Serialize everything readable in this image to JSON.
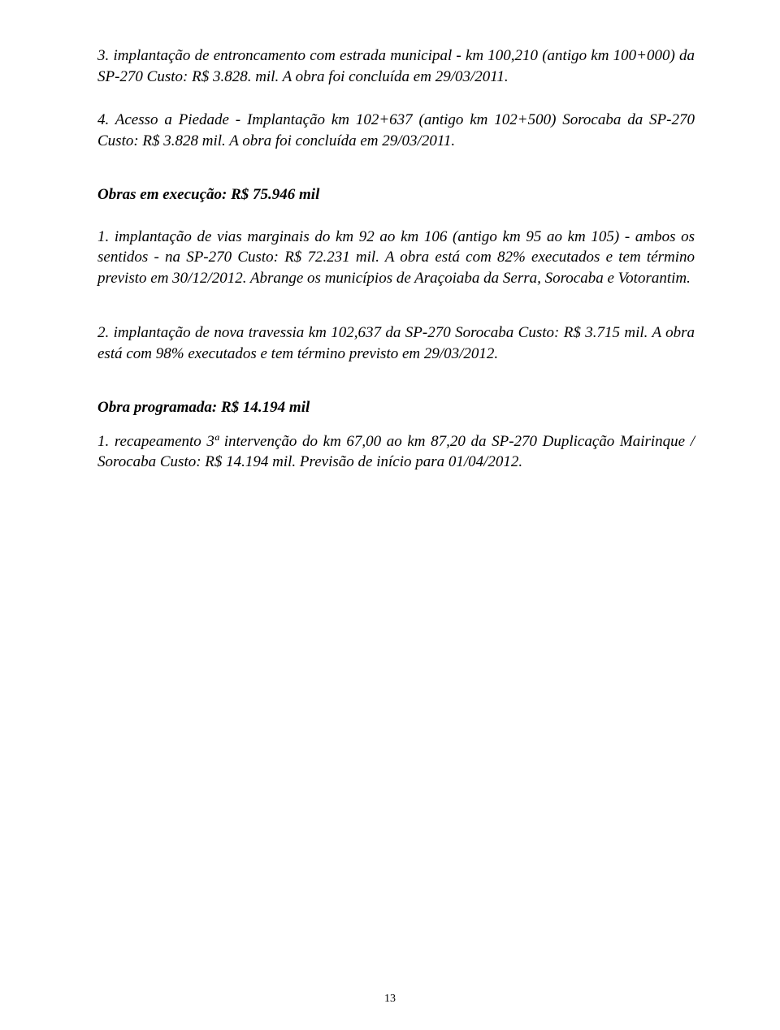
{
  "paragraphs": {
    "p1": "3. implantação de entroncamento com estrada municipal - km 100,210 (antigo km 100+000) da SP-270 Custo: R$ 3.828. mil. A obra foi concluída em 29/03/2011.",
    "p2": "4. Acesso a Piedade - Implantação km 102+637 (antigo km 102+500) Sorocaba da SP-270 Custo: R$ 3.828 mil. A obra foi concluída em 29/03/2011.",
    "p3": "1. implantação de vias marginais do km 92 ao km 106 (antigo km 95 ao km 105) - ambos os sentidos - na SP-270 Custo: R$ 72.231 mil. A obra está com 82% executados e tem término previsto em 30/12/2012. Abrange os municípios de Araçoiaba da Serra, Sorocaba e Votorantim.",
    "p4": "2. implantação de nova travessia km 102,637 da SP-270 Sorocaba Custo: R$ 3.715 mil. A obra está com 98% executados e tem término previsto em 29/03/2012.",
    "p5": "1. recapeamento 3ª intervenção do km 67,00 ao km 87,20 da SP-270 Duplicação Mairinque / Sorocaba Custo: R$ 14.194 mil. Previsão de início para 01/04/2012."
  },
  "headings": {
    "h1": "Obras em execução: R$ 75.946 mil",
    "h2": "Obra programada: R$ 14.194 mil"
  },
  "footer": {
    "page_number": "13"
  }
}
